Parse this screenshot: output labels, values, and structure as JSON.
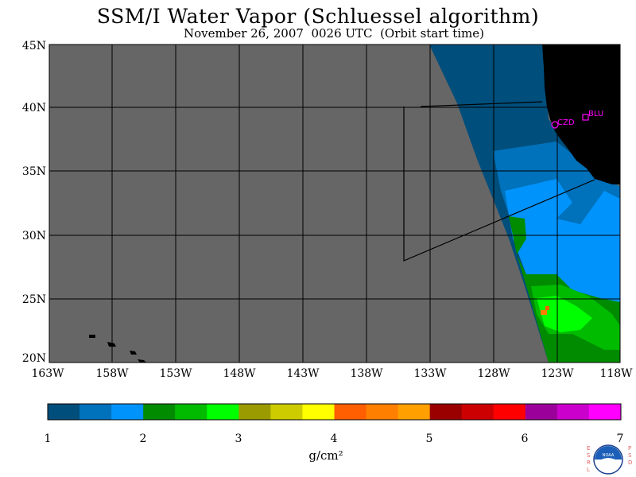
{
  "title": "SSM/I Water Vapor (Schluessel algorithm)",
  "subtitle": "November 26, 2007  0026 UTC  (Orbit start time)",
  "lat_labels": [
    "45N",
    "40N",
    "35N",
    "30N",
    "25N",
    "20N"
  ],
  "lon_labels": [
    "163W",
    "158W",
    "153W",
    "148W",
    "143W",
    "138W",
    "133W",
    "128W",
    "123W",
    "118W"
  ],
  "stations": [
    {
      "label": "BLU",
      "icon": "square-marker-icon"
    },
    {
      "label": "CZD",
      "icon": "circle-marker-icon"
    }
  ],
  "colorbar": {
    "labels": [
      "1",
      "2",
      "3",
      "4",
      "5",
      "6",
      "7"
    ],
    "unit": "g/cm²",
    "colors": [
      "#004e7b",
      "#0071bb",
      "#0093fb",
      "#008b00",
      "#00bb00",
      "#00ff00",
      "#9b9b00",
      "#cccc00",
      "#ffff00",
      "#ff5f00",
      "#ff7f00",
      "#ffa000",
      "#9b0000",
      "#cc0000",
      "#ff0000",
      "#9b009b",
      "#cc00cc",
      "#ff00ff"
    ]
  },
  "legend_colors": {
    "no_data": "#666666",
    "land": "#000000",
    "station": "#ff00ff"
  },
  "logo": {
    "left_text": "ESRL",
    "right_text": "PSD",
    "center_text": "NOAA"
  }
}
